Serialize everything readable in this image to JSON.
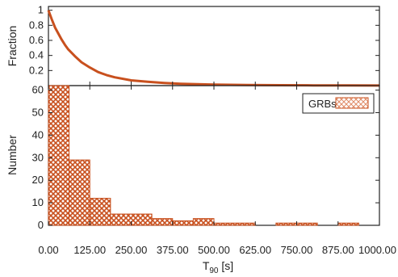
{
  "colors": {
    "accent": "#c8501e",
    "hatch_light": "#f0c8b4",
    "axis": "#222222",
    "background": "#ffffff"
  },
  "chart_data": [
    {
      "type": "line",
      "panel": "top",
      "title": "",
      "xlabel": "",
      "ylabel": "Fraction",
      "xlim": [
        0,
        1000
      ],
      "ylim": [
        0,
        1.05
      ],
      "y_ticks": [
        "0.2",
        "0.4",
        "0.6",
        "0.8",
        "1"
      ],
      "series": [
        {
          "x": [
            0,
            5,
            10,
            20,
            30,
            40,
            50,
            60,
            80,
            100,
            125,
            150,
            175,
            200,
            250,
            300,
            350,
            400,
            450,
            500,
            600,
            700,
            800,
            900,
            1000
          ],
          "y": [
            1.0,
            0.94,
            0.88,
            0.77,
            0.69,
            0.61,
            0.54,
            0.48,
            0.39,
            0.31,
            0.24,
            0.18,
            0.14,
            0.11,
            0.07,
            0.05,
            0.035,
            0.025,
            0.018,
            0.013,
            0.008,
            0.005,
            0.003,
            0.002,
            0.001
          ]
        }
      ],
      "grid": false
    },
    {
      "type": "bar",
      "panel": "bottom",
      "title": "",
      "xlabel": "T",
      "xlabel_sub": "90",
      "xlabel_unit": " [s]",
      "ylabel": "Number",
      "xlim": [
        0,
        1000
      ],
      "ylim": [
        0,
        62
      ],
      "x_ticks": [
        "0.00",
        "125.00",
        "250.00",
        "375.00",
        "500.00",
        "625.00",
        "750.00",
        "875.00",
        "1000.00"
      ],
      "y_ticks": [
        "0",
        "10",
        "20",
        "30",
        "40",
        "50",
        "60"
      ],
      "bin_width": 62.5,
      "bins": [
        {
          "x0": 0,
          "x1": 62.5,
          "value": 62
        },
        {
          "x0": 62.5,
          "x1": 125,
          "value": 29
        },
        {
          "x0": 125,
          "x1": 187.5,
          "value": 12
        },
        {
          "x0": 187.5,
          "x1": 312.5,
          "value": 5
        },
        {
          "x0": 312.5,
          "x1": 375,
          "value": 3
        },
        {
          "x0": 375,
          "x1": 437.5,
          "value": 2
        },
        {
          "x0": 437.5,
          "x1": 500,
          "value": 3
        },
        {
          "x0": 500,
          "x1": 625,
          "value": 1
        },
        {
          "x0": 687.5,
          "x1": 812.5,
          "value": 1
        },
        {
          "x0": 875,
          "x1": 937.5,
          "value": 1
        }
      ],
      "series": [
        {
          "name": "GRBs"
        }
      ],
      "legend": "top-right",
      "grid": false
    }
  ]
}
